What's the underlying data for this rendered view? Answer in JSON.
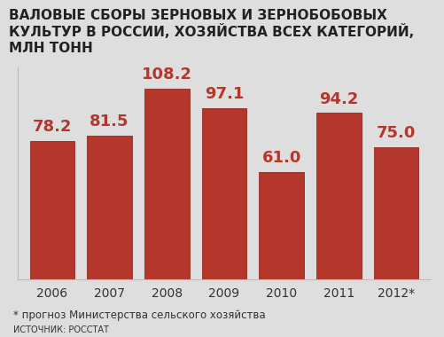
{
  "chart_data": {
    "type": "bar",
    "title": "ВАЛОВЫЕ СБОРЫ ЗЕРНОВЫХ И ЗЕРНОБОБОВЫХ КУЛЬТУР В РОССИИ, ХОЗЯЙСТВА ВСЕХ КАТЕГОРИЙ, МЛН ТОНН",
    "categories": [
      "2006",
      "2007",
      "2008",
      "2009",
      "2010",
      "2011",
      "2012*"
    ],
    "values": [
      78.2,
      81.5,
      108.2,
      97.1,
      61.0,
      94.2,
      75.0
    ],
    "value_labels": [
      "78.2",
      "81.5",
      "108.2",
      "97.1",
      "61.0",
      "94.2",
      "75.0"
    ],
    "data_labels": true,
    "tick_labels": "x",
    "ylim": [
      0,
      120
    ],
    "color": "#b5372c",
    "note": "* прогноз Министерства сельского хозяйства",
    "source": "ИСТОЧНИК: РОССТАТ"
  }
}
